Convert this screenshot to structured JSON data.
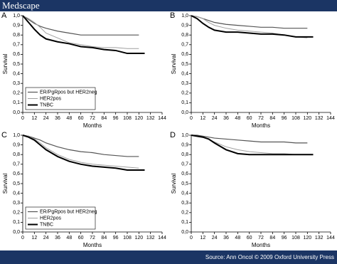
{
  "header": {
    "title": "Medscape"
  },
  "footer": {
    "source": "Source: Ann Oncol © 2009 Oxford University Press"
  },
  "chart_data": [
    {
      "type": "line",
      "label": "A",
      "xlabel": "Months",
      "ylabel": "Survival",
      "xlim": [
        0,
        144
      ],
      "ylim": [
        0,
        1
      ],
      "xticks": [
        0,
        12,
        24,
        36,
        48,
        60,
        72,
        84,
        96,
        108,
        120,
        132,
        144
      ],
      "yticks": [
        {
          "value": 0,
          "label": "0,0"
        },
        {
          "value": 0.1,
          "label": "0,1"
        },
        {
          "value": 0.2,
          "label": "0,2"
        },
        {
          "value": 0.3,
          "label": "0,3"
        },
        {
          "value": 0.4,
          "label": "0,4"
        },
        {
          "value": 0.5,
          "label": "0,5"
        },
        {
          "value": 0.6,
          "label": "0,6"
        },
        {
          "value": 0.7,
          "label": "0,7"
        },
        {
          "value": 0.8,
          "label": "0,8"
        },
        {
          "value": 0.9,
          "label": "0,9"
        },
        {
          "value": 1,
          "label": "1,0"
        }
      ],
      "legend": "lower left",
      "series": [
        {
          "name": "ER/PgRpos but HER2neg",
          "color": "#555555",
          "width": 1.2,
          "x": [
            0,
            6,
            12,
            18,
            24,
            36,
            48,
            60,
            72,
            84,
            96,
            108,
            120
          ],
          "values": [
            1,
            0.96,
            0.92,
            0.89,
            0.87,
            0.84,
            0.82,
            0.8,
            0.8,
            0.8,
            0.8,
            0.8,
            0.8
          ]
        },
        {
          "name": "HER2pos",
          "color": "#a0a0a0",
          "width": 1,
          "x": [
            0,
            6,
            12,
            18,
            24,
            36,
            48,
            60,
            72,
            84,
            96,
            108,
            120
          ],
          "values": [
            1,
            0.97,
            0.93,
            0.88,
            0.82,
            0.77,
            0.72,
            0.7,
            0.68,
            0.67,
            0.67,
            0.66,
            0.66
          ]
        },
        {
          "name": "TNBC",
          "color": "#000000",
          "width": 2,
          "x": [
            0,
            6,
            12,
            18,
            24,
            36,
            48,
            60,
            72,
            84,
            96,
            108,
            126
          ],
          "values": [
            1,
            0.93,
            0.86,
            0.8,
            0.76,
            0.73,
            0.71,
            0.68,
            0.67,
            0.65,
            0.64,
            0.61,
            0.61
          ]
        }
      ]
    },
    {
      "type": "line",
      "label": "B",
      "xlabel": "Months",
      "ylabel": "Survival",
      "xlim": [
        0,
        144
      ],
      "ylim": [
        0,
        1
      ],
      "xticks": [
        0,
        12,
        24,
        36,
        48,
        60,
        72,
        84,
        96,
        108,
        120,
        132,
        144
      ],
      "yticks": [
        {
          "value": 0,
          "label": "0,0"
        },
        {
          "value": 0.1,
          "label": "0,1"
        },
        {
          "value": 0.2,
          "label": "0,2"
        },
        {
          "value": 0.3,
          "label": "0,3"
        },
        {
          "value": 0.4,
          "label": "0,4"
        },
        {
          "value": 0.5,
          "label": "0,5"
        },
        {
          "value": 0.6,
          "label": "0,6"
        },
        {
          "value": 0.7,
          "label": "0,7"
        },
        {
          "value": 0.8,
          "label": "0,8"
        },
        {
          "value": 0.9,
          "label": "0,9"
        },
        {
          "value": 1,
          "label": "1,0"
        }
      ],
      "series": [
        {
          "color": "#555555",
          "width": 1.2,
          "x": [
            0,
            6,
            12,
            18,
            24,
            36,
            48,
            60,
            72,
            84,
            96,
            108,
            120
          ],
          "values": [
            1,
            0.99,
            0.97,
            0.95,
            0.93,
            0.91,
            0.9,
            0.89,
            0.88,
            0.88,
            0.87,
            0.87,
            0.87
          ]
        },
        {
          "color": "#a0a0a0",
          "width": 1,
          "x": [
            0,
            6,
            12,
            18,
            24,
            36,
            48,
            60,
            72,
            84,
            96,
            108,
            120
          ],
          "values": [
            1,
            0.99,
            0.97,
            0.93,
            0.9,
            0.87,
            0.85,
            0.84,
            0.83,
            0.82,
            0.8,
            0.78,
            0.77
          ]
        },
        {
          "color": "#000000",
          "width": 2,
          "x": [
            0,
            6,
            12,
            18,
            24,
            36,
            48,
            60,
            72,
            84,
            96,
            108,
            126
          ],
          "values": [
            1,
            0.97,
            0.92,
            0.88,
            0.85,
            0.83,
            0.83,
            0.82,
            0.81,
            0.81,
            0.8,
            0.78,
            0.78
          ]
        }
      ]
    },
    {
      "type": "line",
      "label": "C",
      "xlabel": "Months",
      "ylabel": "Survival",
      "xlim": [
        0,
        144
      ],
      "ylim": [
        0,
        1
      ],
      "xticks": [
        0,
        12,
        24,
        36,
        48,
        60,
        72,
        84,
        96,
        108,
        120,
        132,
        144
      ],
      "yticks": [
        {
          "value": 0,
          "label": "0,0"
        },
        {
          "value": 0.1,
          "label": "0,1"
        },
        {
          "value": 0.2,
          "label": "0,2"
        },
        {
          "value": 0.3,
          "label": "0,3"
        },
        {
          "value": 0.4,
          "label": "0,4"
        },
        {
          "value": 0.5,
          "label": "0,5"
        },
        {
          "value": 0.6,
          "label": "0,6"
        },
        {
          "value": 0.7,
          "label": "0,7"
        },
        {
          "value": 0.8,
          "label": "0,8"
        },
        {
          "value": 0.9,
          "label": "0,9"
        },
        {
          "value": 1,
          "label": "1,0"
        }
      ],
      "legend": "lower left",
      "series": [
        {
          "name": "ER/PgRpos but HER2neg",
          "color": "#555555",
          "width": 1.2,
          "x": [
            0,
            6,
            12,
            18,
            24,
            36,
            48,
            60,
            72,
            84,
            96,
            108,
            120
          ],
          "values": [
            1,
            0.99,
            0.97,
            0.95,
            0.92,
            0.88,
            0.85,
            0.83,
            0.82,
            0.8,
            0.79,
            0.78,
            0.78
          ]
        },
        {
          "name": "HER2pos",
          "color": "#a0a0a0",
          "width": 1,
          "x": [
            0,
            6,
            12,
            18,
            24,
            36,
            48,
            60,
            72,
            84,
            96,
            108,
            120
          ],
          "values": [
            1,
            0.99,
            0.96,
            0.92,
            0.87,
            0.8,
            0.75,
            0.72,
            0.7,
            0.69,
            0.68,
            0.67,
            0.66
          ]
        },
        {
          "name": "TNBC",
          "color": "#000000",
          "width": 2,
          "x": [
            0,
            6,
            12,
            18,
            24,
            36,
            48,
            60,
            72,
            84,
            96,
            108,
            126
          ],
          "values": [
            1,
            0.98,
            0.95,
            0.9,
            0.85,
            0.78,
            0.73,
            0.7,
            0.68,
            0.67,
            0.66,
            0.64,
            0.64
          ]
        }
      ]
    },
    {
      "type": "line",
      "label": "D",
      "xlabel": "Months",
      "ylabel": "Survival",
      "xlim": [
        0,
        144
      ],
      "ylim": [
        0,
        1
      ],
      "xticks": [
        0,
        12,
        24,
        36,
        48,
        60,
        72,
        84,
        96,
        108,
        120,
        132,
        144
      ],
      "yticks": [
        {
          "value": 0,
          "label": "0,0"
        },
        {
          "value": 0.1,
          "label": "0,1"
        },
        {
          "value": 0.2,
          "label": "0,2"
        },
        {
          "value": 0.3,
          "label": "0,3"
        },
        {
          "value": 0.4,
          "label": "0,4"
        },
        {
          "value": 0.5,
          "label": "0,5"
        },
        {
          "value": 0.6,
          "label": "0,6"
        },
        {
          "value": 0.7,
          "label": "0,7"
        },
        {
          "value": 0.8,
          "label": "0,8"
        },
        {
          "value": 0.9,
          "label": "0,9"
        },
        {
          "value": 1,
          "label": "1,0"
        }
      ],
      "series": [
        {
          "color": "#555555",
          "width": 1.2,
          "x": [
            0,
            6,
            12,
            18,
            24,
            36,
            48,
            60,
            72,
            84,
            96,
            108,
            120
          ],
          "values": [
            1,
            1,
            0.99,
            0.98,
            0.97,
            0.96,
            0.95,
            0.94,
            0.93,
            0.93,
            0.93,
            0.92,
            0.92
          ]
        },
        {
          "color": "#a0a0a0",
          "width": 1,
          "x": [
            0,
            6,
            12,
            18,
            24,
            36,
            48,
            60,
            72,
            84,
            96,
            108,
            120
          ],
          "values": [
            1,
            0.99,
            0.98,
            0.96,
            0.93,
            0.88,
            0.85,
            0.83,
            0.82,
            0.81,
            0.81,
            0.8,
            0.8
          ]
        },
        {
          "color": "#000000",
          "width": 2,
          "x": [
            0,
            6,
            12,
            18,
            24,
            36,
            48,
            60,
            72,
            84,
            96,
            108,
            126
          ],
          "values": [
            1,
            0.99,
            0.98,
            0.96,
            0.92,
            0.85,
            0.81,
            0.8,
            0.8,
            0.8,
            0.8,
            0.8,
            0.8
          ]
        }
      ]
    }
  ]
}
